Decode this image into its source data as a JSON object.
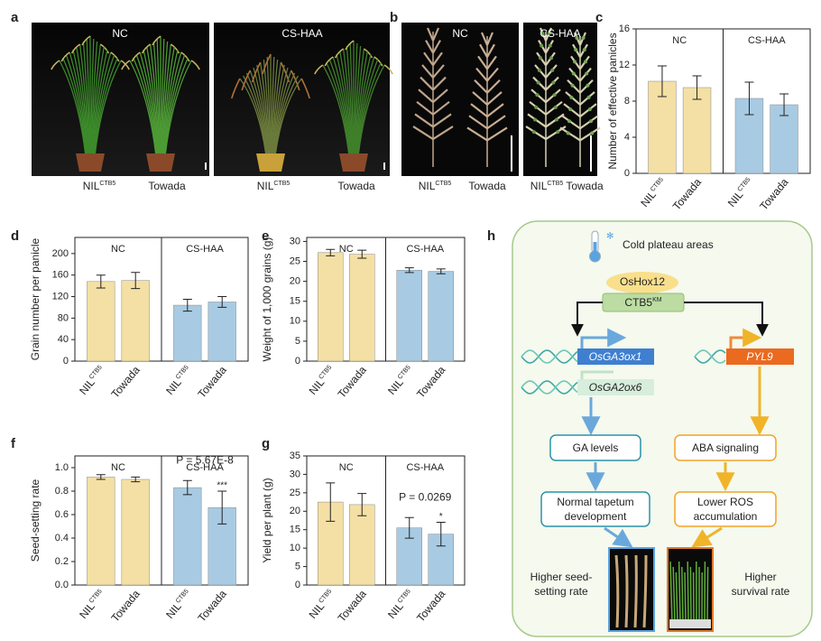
{
  "panel_labels": [
    "a",
    "b",
    "c",
    "d",
    "e",
    "f",
    "g",
    "h"
  ],
  "photo_panels": [
    {
      "conditions": [
        "NC",
        "CS-HAA"
      ],
      "labels": [
        {
          "text": "NIL",
          "sup": "CTB5"
        },
        {
          "text": "Towada"
        },
        {
          "text": "NIL",
          "sup": "CTB5"
        },
        {
          "text": "Towada"
        }
      ]
    },
    {
      "conditions": [
        "NC",
        "CS-HAA"
      ],
      "labels": [
        {
          "text": "NIL",
          "sup": "CTB5"
        },
        {
          "text": "Towada"
        },
        {
          "text": "NIL",
          "sup": "CTB5"
        },
        {
          "text": "Towada"
        }
      ]
    }
  ],
  "chart_data": [
    {
      "type": "bar",
      "ylabel": "Number of effective panicles",
      "groups": [
        "NC",
        "CS-HAA"
      ],
      "categories": [
        {
          "text": "NIL",
          "sup": "CTB5"
        },
        {
          "text": "Towada"
        },
        {
          "text": "NIL",
          "sup": "CTB5"
        },
        {
          "text": "Towada"
        }
      ],
      "values": [
        10.2,
        9.5,
        8.3,
        7.6
      ],
      "errors": [
        1.7,
        1.3,
        1.8,
        1.2
      ],
      "colors": [
        "#f4e0a4",
        "#f4e0a4",
        "#a8cbe3",
        "#a8cbe3"
      ],
      "ylim": [
        0,
        16
      ],
      "yticks": [
        0,
        4,
        8,
        12,
        16
      ]
    },
    {
      "type": "bar",
      "ylabel": "Grain number per panicle",
      "groups": [
        "NC",
        "CS-HAA"
      ],
      "categories": [
        {
          "text": "NIL",
          "sup": "CTB5"
        },
        {
          "text": "Towada"
        },
        {
          "text": "NIL",
          "sup": "CTB5"
        },
        {
          "text": "Towada"
        }
      ],
      "values": [
        148,
        150,
        104,
        110
      ],
      "errors": [
        12,
        15,
        11,
        10
      ],
      "colors": [
        "#f4e0a4",
        "#f4e0a4",
        "#a8cbe3",
        "#a8cbe3"
      ],
      "ylim": [
        0,
        230
      ],
      "yticks": [
        0,
        40,
        80,
        120,
        160,
        200
      ]
    },
    {
      "type": "bar",
      "ylabel": "Weight of 1,000 grains (g)",
      "groups": [
        "NC",
        "CS-HAA"
      ],
      "categories": [
        {
          "text": "NIL",
          "sup": "CTB5"
        },
        {
          "text": "Towada"
        },
        {
          "text": "NIL",
          "sup": "CTB5"
        },
        {
          "text": "Towada"
        }
      ],
      "values": [
        27.2,
        26.8,
        22.8,
        22.5
      ],
      "errors": [
        0.8,
        1.0,
        0.6,
        0.6
      ],
      "colors": [
        "#f4e0a4",
        "#f4e0a4",
        "#a8cbe3",
        "#a8cbe3"
      ],
      "ylim": [
        0,
        31
      ],
      "yticks": [
        0,
        5,
        10,
        15,
        20,
        25,
        30
      ]
    },
    {
      "type": "bar",
      "ylabel": "Seed-setting rate",
      "groups": [
        "NC",
        "CS-HAA"
      ],
      "categories": [
        {
          "text": "NIL",
          "sup": "CTB5"
        },
        {
          "text": "Towada"
        },
        {
          "text": "NIL",
          "sup": "CTB5"
        },
        {
          "text": "Towada"
        }
      ],
      "values": [
        0.92,
        0.9,
        0.83,
        0.66
      ],
      "errors": [
        0.02,
        0.02,
        0.06,
        0.14
      ],
      "colors": [
        "#f4e0a4",
        "#f4e0a4",
        "#a8cbe3",
        "#a8cbe3"
      ],
      "ylim": [
        0,
        1.1
      ],
      "yticks": [
        {
          "value": 0,
          "label": "0.0"
        },
        0.2,
        0.4,
        0.6,
        0.8,
        {
          "value": 1,
          "label": "1.0"
        }
      ],
      "annotation": "P = 5.67E-8",
      "significance": "***"
    },
    {
      "type": "bar",
      "ylabel": "Yield per plant (g)",
      "groups": [
        "NC",
        "CS-HAA"
      ],
      "categories": [
        {
          "text": "NIL",
          "sup": "CTB5"
        },
        {
          "text": "Towada"
        },
        {
          "text": "NIL",
          "sup": "CTB5"
        },
        {
          "text": "Towada"
        }
      ],
      "values": [
        22.5,
        21.8,
        15.5,
        13.8
      ],
      "errors": [
        5.2,
        3.0,
        2.8,
        3.2
      ],
      "colors": [
        "#f4e0a4",
        "#f4e0a4",
        "#a8cbe3",
        "#a8cbe3"
      ],
      "ylim": [
        0,
        35
      ],
      "yticks": [
        0,
        5,
        10,
        15,
        20,
        25,
        30,
        35
      ],
      "annotation": "P = 0.0269",
      "significance": "*"
    }
  ],
  "diagram": {
    "title": "Cold plateau areas",
    "regulator": "OsHox12",
    "gene": {
      "text": "CTB5",
      "sup": "KM"
    },
    "ga_genes": [
      "OsGA3ox1",
      "OsGA2ox6"
    ],
    "aba_gene": "PYL9",
    "ga": "GA levels",
    "aba": "ABA signaling",
    "tapetum": [
      "Normal tapetum",
      "development"
    ],
    "ros": [
      "Lower ROS",
      "accumulation"
    ],
    "seed": [
      "Higher seed-",
      "setting rate"
    ],
    "survival": [
      "Higher",
      "survival rate"
    ]
  }
}
